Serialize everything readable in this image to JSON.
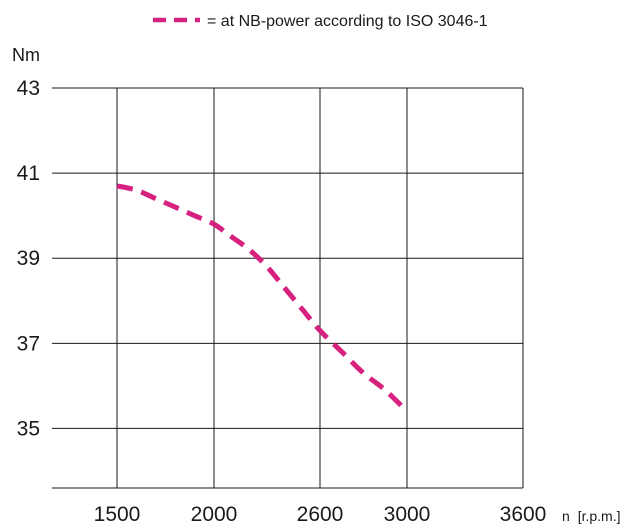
{
  "chart_data": {
    "type": "line",
    "legend": {
      "label": "= at NB-power according to ISO 3046-1",
      "placement": "top"
    },
    "ylabel": "Nm",
    "xlabel": "n",
    "xlabel_unit": "[r.p.m.]",
    "x_ticks": [
      "1500",
      "2000",
      "2600",
      "3000",
      "3600"
    ],
    "y_ticks": [
      "35",
      "37",
      "39",
      "41",
      "43"
    ],
    "x_tick_values": [
      1500,
      2000,
      2600,
      3000,
      3600
    ],
    "y_tick_values": [
      35,
      37,
      39,
      41,
      43
    ],
    "ylim": [
      33.6,
      43
    ],
    "grid": true,
    "series": [
      {
        "style": "dashed",
        "color": "#d6217e",
        "x": [
          1500,
          1600,
          1700,
          1800,
          1900,
          2000,
          2100,
          2200,
          2300,
          2400,
          2500,
          2600,
          2700,
          2800,
          2900,
          3000
        ],
        "y": [
          40.7,
          40.6,
          40.4,
          40.2,
          40.0,
          39.8,
          39.5,
          39.2,
          38.8,
          38.3,
          37.8,
          37.3,
          36.8,
          36.3,
          35.9,
          35.4
        ]
      }
    ]
  }
}
